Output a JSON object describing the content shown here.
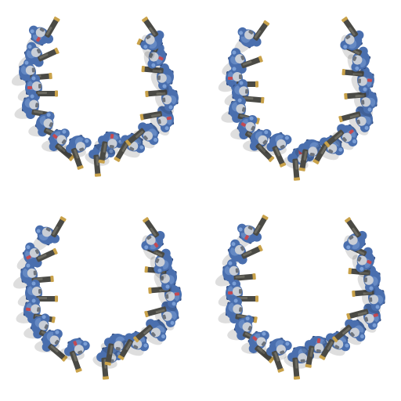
{
  "sprite_sheet": {
    "frame_count": 4,
    "background_color": "#ffffff",
    "unit_colors": {
      "armor": "#4a6fae",
      "armor_dark": "#2f4a7e",
      "armor_light": "#7b9fd6",
      "helmet": "#c9ced6",
      "visor": "#6d737c",
      "weapon": "#4a4a45",
      "weapon_light": "#6b6a61",
      "muzzle": "#c9a24a",
      "accent_red": "#c44a52",
      "shadow": "#000000"
    },
    "frames": [
      {
        "name": "frame-1",
        "variant": 0
      },
      {
        "name": "frame-2",
        "variant": 1
      },
      {
        "name": "frame-3",
        "variant": 2
      },
      {
        "name": "frame-4",
        "variant": 3
      }
    ]
  }
}
